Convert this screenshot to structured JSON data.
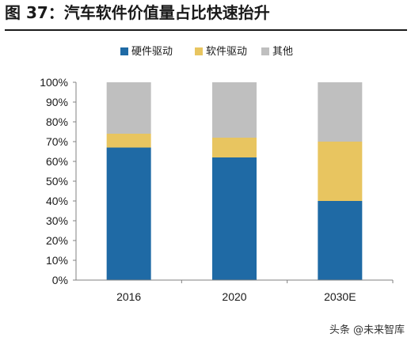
{
  "header": {
    "title": "图 37：汽车软件价值量占比快速抬升"
  },
  "watermark": "头条 @未来智库",
  "chart_data": {
    "type": "bar",
    "stacked": true,
    "categories": [
      "2016",
      "2020",
      "2030E"
    ],
    "series": [
      {
        "name": "硬件驱动",
        "color": "#1f6aa5",
        "values": [
          67,
          62,
          40
        ]
      },
      {
        "name": "软件驱动",
        "color": "#e8c560",
        "values": [
          7,
          10,
          30
        ]
      },
      {
        "name": "其他",
        "color": "#bfbfbf",
        "values": [
          26,
          28,
          30
        ]
      }
    ],
    "ylim": [
      0,
      100
    ],
    "yticks": [
      "0%",
      "10%",
      "20%",
      "30%",
      "40%",
      "50%",
      "60%",
      "70%",
      "80%",
      "90%",
      "100%"
    ],
    "legend_position": "top",
    "grid": false
  }
}
